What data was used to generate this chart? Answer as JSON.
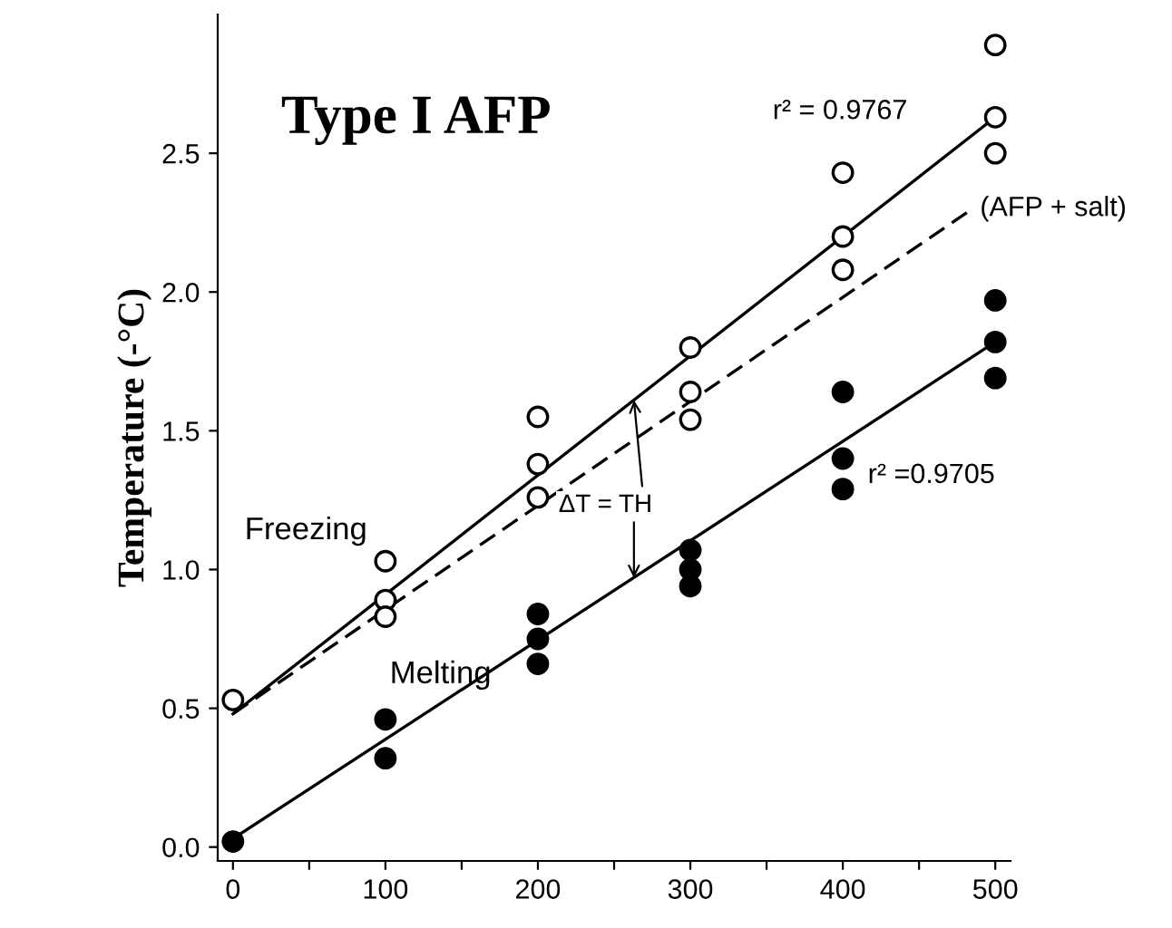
{
  "chart_data": {
    "type": "scatter",
    "title": "Type I AFP",
    "ylabel": "Temperature (-°C)",
    "xlim": [
      -10,
      510
    ],
    "ylim": [
      -0.05,
      3.0
    ],
    "xticks": [
      0,
      {
        "value": 50,
        "label": null
      },
      100,
      {
        "value": 150,
        "label": null
      },
      200,
      {
        "value": 250,
        "label": null
      },
      300,
      {
        "value": 350,
        "label": null
      },
      400,
      {
        "value": 450,
        "label": null
      },
      500
    ],
    "yticks": [
      {
        "value": 0,
        "label": "0.0"
      },
      {
        "value": 0.5,
        "label": "0.5"
      },
      {
        "value": 1,
        "label": "1.0"
      },
      {
        "value": 1.5,
        "label": "1.5"
      },
      {
        "value": 2,
        "label": "2.0"
      },
      {
        "value": 2.5,
        "label": "2.5"
      }
    ],
    "grid": false,
    "legend": false,
    "marker": "circle",
    "series": [
      {
        "name": "Freezing",
        "color": "#000000",
        "x": [
          0,
          100,
          100,
          100,
          200,
          200,
          200,
          300,
          300,
          300,
          400,
          400,
          400,
          500,
          500,
          500
        ],
        "values": [
          0.53,
          1.03,
          0.89,
          0.83,
          1.55,
          1.38,
          1.26,
          1.8,
          1.64,
          1.54,
          2.43,
          2.2,
          2.08,
          2.89,
          2.63,
          2.5
        ]
      },
      {
        "name": "Melting",
        "color": "#000000",
        "x": [
          0,
          100,
          100,
          200,
          200,
          200,
          300,
          300,
          300,
          400,
          400,
          400,
          500,
          500,
          500
        ],
        "values": [
          0.02,
          0.46,
          0.32,
          0.84,
          0.75,
          0.66,
          1.07,
          1.0,
          0.94,
          1.64,
          1.4,
          1.29,
          1.97,
          1.82,
          1.69
        ]
      },
      {
        "type": "line",
        "marker": "none",
        "color": "#000000",
        "line_style": "solid",
        "x": [
          0,
          500
        ],
        "values": [
          0.48,
          2.63
        ]
      },
      {
        "type": "line",
        "marker": "none",
        "color": "#000000",
        "line_style": "dashed",
        "x": [
          0,
          485
        ],
        "values": [
          0.48,
          2.3
        ]
      },
      {
        "type": "line",
        "marker": "none",
        "color": "#000000",
        "line_style": "solid",
        "x": [
          0,
          500
        ],
        "values": [
          0.03,
          1.82
        ]
      }
    ],
    "annotations": [
      "r² = 0.9767",
      {
        "text": "(AFP + salt)",
        "x": 485,
        "y": 2.3
      },
      "r² =0.9705",
      {
        "text": "ΔT = TH",
        "x": 263,
        "y": 1.61
      }
    ]
  }
}
